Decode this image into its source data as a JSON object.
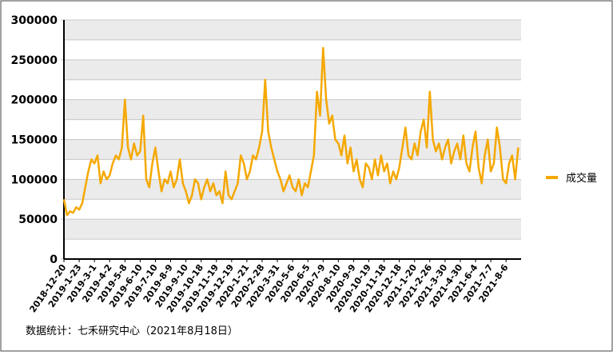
{
  "chart_data": {
    "type": "line",
    "footer": "数据统计：七禾研究中心（2021年8月18日）",
    "categories": [
      "2018-12-20",
      null,
      null,
      null,
      null,
      "2019-1-23",
      null,
      null,
      null,
      null,
      "2019-3-1",
      null,
      null,
      null,
      null,
      "2019-4-2",
      null,
      null,
      null,
      null,
      "2019-5-8",
      null,
      null,
      null,
      null,
      "2019-6-10",
      null,
      null,
      null,
      null,
      "2019-7-10",
      null,
      null,
      null,
      null,
      "2019-8-9",
      null,
      null,
      null,
      null,
      "2019-9-10",
      null,
      null,
      null,
      null,
      "2019-10-18",
      null,
      null,
      null,
      null,
      "2019-11-19",
      null,
      null,
      null,
      null,
      "2019-12-19",
      null,
      null,
      null,
      null,
      "2020-1-21",
      null,
      null,
      null,
      null,
      "2020-2-28",
      null,
      null,
      null,
      null,
      "2020-3-31",
      null,
      null,
      null,
      null,
      "2020-5-6",
      null,
      null,
      null,
      null,
      "2020-6-5",
      null,
      null,
      null,
      null,
      "2020-7-9",
      null,
      null,
      null,
      null,
      "2020-8-10",
      null,
      null,
      null,
      null,
      "2020-9-9",
      null,
      null,
      null,
      null,
      "2020-10-19",
      null,
      null,
      null,
      null,
      "2020-11-18",
      null,
      null,
      null,
      null,
      "2020-12-18",
      null,
      null,
      null,
      null,
      "2021-1-20",
      null,
      null,
      null,
      null,
      "2021-2-26",
      null,
      null,
      null,
      null,
      "2021-3-30",
      null,
      null,
      null,
      null,
      "2021-4-30",
      null,
      null,
      null,
      null,
      "2021-6-4",
      null,
      null,
      null,
      null,
      "2021-7-7",
      null,
      null,
      null,
      null,
      "2021-8-6",
      null,
      null,
      null,
      null
    ],
    "series": [
      {
        "name": "成交量",
        "color": "#f5a800",
        "values": [
          75000,
          55000,
          60000,
          58000,
          65000,
          62000,
          70000,
          90000,
          110000,
          125000,
          120000,
          130000,
          95000,
          110000,
          100000,
          105000,
          120000,
          130000,
          125000,
          140000,
          200000,
          140000,
          125000,
          145000,
          130000,
          135000,
          180000,
          100000,
          90000,
          120000,
          140000,
          110000,
          85000,
          100000,
          95000,
          110000,
          90000,
          100000,
          125000,
          95000,
          85000,
          70000,
          80000,
          100000,
          95000,
          75000,
          90000,
          100000,
          85000,
          95000,
          80000,
          85000,
          70000,
          110000,
          80000,
          75000,
          85000,
          95000,
          130000,
          120000,
          100000,
          110000,
          130000,
          125000,
          140000,
          160000,
          225000,
          160000,
          140000,
          125000,
          110000,
          100000,
          85000,
          95000,
          105000,
          90000,
          85000,
          100000,
          80000,
          95000,
          90000,
          110000,
          130000,
          210000,
          180000,
          265000,
          200000,
          170000,
          180000,
          150000,
          145000,
          130000,
          155000,
          120000,
          140000,
          110000,
          125000,
          100000,
          90000,
          120000,
          115000,
          100000,
          125000,
          105000,
          130000,
          110000,
          120000,
          95000,
          110000,
          100000,
          115000,
          140000,
          165000,
          130000,
          125000,
          145000,
          130000,
          160000,
          175000,
          140000,
          210000,
          150000,
          135000,
          145000,
          125000,
          140000,
          150000,
          120000,
          135000,
          145000,
          125000,
          155000,
          120000,
          110000,
          140000,
          160000,
          115000,
          95000,
          130000,
          150000,
          110000,
          120000,
          165000,
          140000,
          100000,
          95000,
          120000,
          130000,
          100000,
          140000
        ]
      }
    ],
    "ylim": [
      0,
      300000
    ],
    "yticks": [
      0,
      50000,
      100000,
      150000,
      200000,
      250000,
      300000
    ],
    "grid": "bands",
    "legend": "right"
  }
}
